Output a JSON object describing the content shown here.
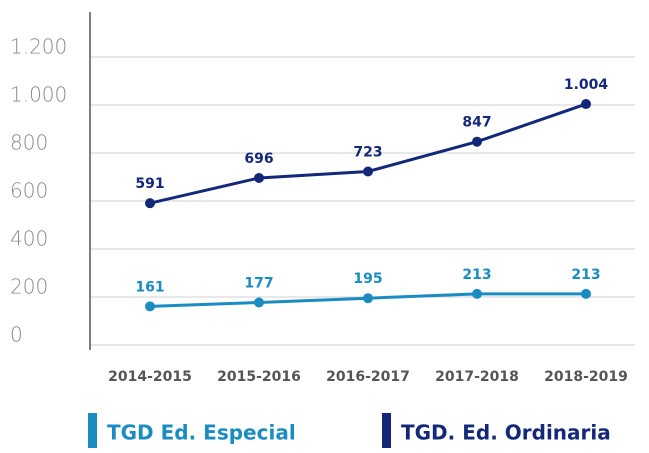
{
  "chart_data": {
    "type": "line",
    "categories": [
      "2014-2015",
      "2015-2016",
      "2016-2017",
      "2017-2018",
      "2018-2019"
    ],
    "series": [
      {
        "name": "TGD Ed. Especial",
        "color": "#1b8cc2",
        "values": [
          161,
          177,
          195,
          213,
          213
        ]
      },
      {
        "name": "TGD. Ed. Ordinaria",
        "color": "#14287a",
        "values": [
          591,
          696,
          723,
          847,
          1004
        ],
        "value_labels": [
          "591",
          "696",
          "723",
          "847",
          "1.004"
        ]
      }
    ],
    "ylim": [
      0,
      1400
    ],
    "yticks": [
      0,
      200,
      400,
      600,
      800,
      {
        "value": 1000,
        "label": "1.000"
      },
      {
        "value": 1200,
        "label": "1.200"
      }
    ],
    "grid": true
  }
}
